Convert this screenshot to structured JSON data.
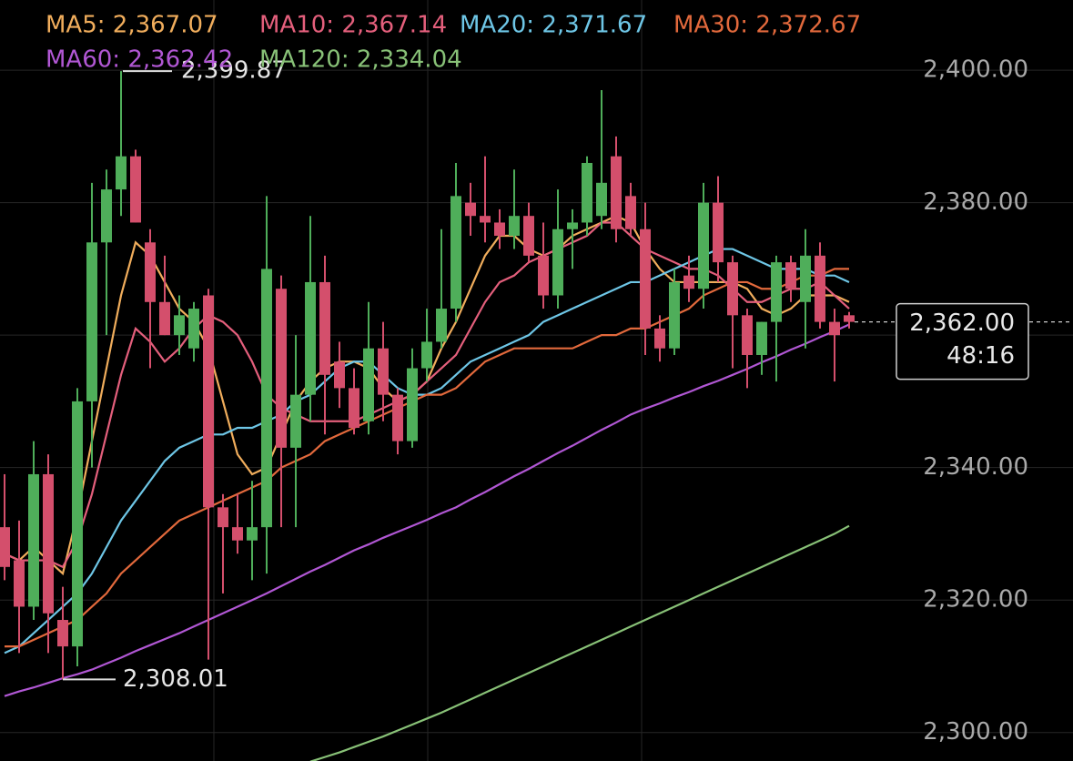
{
  "chart_data": {
    "type": "candlestick",
    "categories": [
      null,
      null,
      null,
      null,
      null,
      null,
      null,
      null,
      null,
      null,
      null,
      null,
      null,
      null,
      null,
      null,
      null,
      null,
      null,
      null,
      null,
      null,
      null,
      null,
      null,
      null,
      null,
      null,
      null,
      null,
      null,
      null,
      null,
      null,
      null,
      null,
      null,
      null,
      null,
      null,
      null,
      null,
      null,
      null,
      null,
      null,
      null,
      null,
      null,
      null,
      null,
      null,
      null,
      null,
      null,
      null,
      null,
      null,
      null
    ],
    "up_color": "#4fae5a",
    "down_color": "#d44f6c",
    "open": [
      2331,
      2326,
      2319,
      2339,
      2317,
      2313,
      2350,
      2374,
      2382,
      2387,
      2374,
      2365,
      2360,
      2358,
      2366,
      2334,
      2331,
      2329,
      2331,
      2367,
      2343,
      2351,
      2368,
      2356,
      2352,
      2347,
      2358,
      2351,
      2344,
      2355,
      2359,
      2364,
      2380,
      2378,
      2377,
      2375,
      2378,
      2372,
      2366,
      2376,
      2377,
      2378,
      2387,
      2381,
      2376,
      2361,
      2358,
      2369,
      2367,
      2380,
      2371,
      2363,
      2357,
      2362,
      2371,
      2365,
      2372,
      2362,
      2363
    ],
    "high": [
      2339,
      2332,
      2344,
      2342,
      2322,
      2352,
      2383,
      2385,
      2399.87,
      2388,
      2376,
      2372,
      2366,
      2365,
      2367,
      2336,
      2336,
      2338,
      2381,
      2369,
      2360,
      2378,
      2372,
      2359,
      2355,
      2365,
      2362,
      2352,
      2358,
      2364,
      2376,
      2386,
      2383,
      2387,
      2379,
      2385,
      2380,
      2377,
      2382,
      2379,
      2387,
      2397,
      2390,
      2383,
      2380,
      2363,
      2370,
      2372,
      2383,
      2384,
      2372,
      2364,
      2362,
      2372,
      2372,
      2376,
      2374,
      2364,
      2363.5
    ],
    "low": [
      2323,
      2312,
      2317,
      2312,
      2308.01,
      2310,
      2340,
      2360,
      2378,
      2377,
      2355,
      2360,
      2357,
      2356,
      2311,
      2321,
      2327,
      2323,
      2324,
      2331,
      2331,
      2347,
      2345,
      2349,
      2345,
      2345,
      2347,
      2342,
      2343,
      2353,
      2358,
      2362,
      2375,
      2374,
      2373,
      2373,
      2371,
      2364,
      2364,
      2370,
      2375,
      2376,
      2374,
      2375,
      2357,
      2356,
      2357,
      2365,
      2364,
      2368,
      2355,
      2352,
      2354,
      2353,
      2365,
      2358,
      2361,
      2353,
      2361
    ],
    "close": [
      2325,
      2319,
      2339,
      2318,
      2313,
      2350,
      2374,
      2382,
      2387,
      2377,
      2365,
      2360,
      2363,
      2364,
      2334,
      2331,
      2329,
      2331,
      2370,
      2343,
      2351,
      2368,
      2354,
      2352,
      2346,
      2358,
      2351,
      2344,
      2355,
      2359,
      2364,
      2381,
      2378,
      2377,
      2375,
      2378,
      2372,
      2366,
      2376,
      2377,
      2386,
      2383,
      2376,
      2376,
      2361,
      2358,
      2368,
      2367,
      2380,
      2371,
      2363,
      2357,
      2362,
      2371,
      2367,
      2372,
      2362,
      2360,
      2362
    ],
    "series": [
      {
        "name": "MA5: 2,367.07",
        "color": "#f0ad5c",
        "values": [
          2327,
          2326,
          2328,
          2326,
          2324,
          2333,
          2344,
          2355,
          2366,
          2374,
          2372,
          2368,
          2364,
          2362,
          2358,
          2350,
          2342,
          2339,
          2340,
          2345,
          2350,
          2353,
          2355,
          2356,
          2356,
          2355,
          2352,
          2350,
          2351,
          2353,
          2358,
          2362,
          2367,
          2372,
          2375,
          2375,
          2373,
          2372,
          2373,
          2375,
          2376,
          2377,
          2378,
          2377,
          2373,
          2370,
          2368,
          2368,
          2368,
          2368,
          2368,
          2367,
          2364,
          2363,
          2364,
          2366,
          2366,
          2366,
          2365
        ]
      },
      {
        "name": "MA10: 2,367.14",
        "color": "#e45f7c",
        "values": [
          2327,
          2326,
          2326,
          2326,
          2325,
          2329,
          2336,
          2345,
          2354,
          2361,
          2359,
          2356,
          2358,
          2361,
          2363,
          2362,
          2360,
          2356,
          2351,
          2349,
          2348,
          2347,
          2347,
          2347,
          2347,
          2348,
          2349,
          2350,
          2351,
          2353,
          2355,
          2357,
          2361,
          2365,
          2368,
          2369,
          2371,
          2372,
          2373,
          2374,
          2375,
          2377,
          2377,
          2375,
          2373,
          2372,
          2371,
          2370,
          2370,
          2369,
          2367,
          2365,
          2365,
          2366,
          2367,
          2367,
          2368,
          2366,
          2364
        ]
      },
      {
        "name": "MA20: 2,371.67",
        "color": "#6ec6e6",
        "values": [
          2312,
          2313,
          2315,
          2317,
          2319,
          2321,
          2324,
          2328,
          2332,
          2335,
          2338,
          2341,
          2343,
          2344,
          2345,
          2345,
          2346,
          2346,
          2347,
          2348,
          2350,
          2351,
          2353,
          2355,
          2356,
          2356,
          2354,
          2352,
          2351,
          2351,
          2352,
          2354,
          2356,
          2357,
          2358,
          2359,
          2360,
          2362,
          2363,
          2364,
          2365,
          2366,
          2367,
          2368,
          2368,
          2369,
          2370,
          2371,
          2372,
          2373,
          2373,
          2372,
          2371,
          2370,
          2370,
          2370,
          2369,
          2369,
          2368
        ]
      },
      {
        "name": "MA30: 2,372.67",
        "color": "#e2693c",
        "values": [
          2313,
          2313,
          2314,
          2315,
          2316,
          2317,
          2319,
          2321,
          2324,
          2326,
          2328,
          2330,
          2332,
          2333,
          2334,
          2335,
          2336,
          2337,
          2338,
          2340,
          2341,
          2342,
          2344,
          2345,
          2346,
          2347,
          2348,
          2349,
          2350,
          2351,
          2351,
          2352,
          2354,
          2356,
          2357,
          2358,
          2358,
          2358,
          2358,
          2358,
          2359,
          2360,
          2360,
          2361,
          2361,
          2362,
          2363,
          2364,
          2366,
          2367,
          2368,
          2368,
          2367,
          2367,
          2368,
          2369,
          2369,
          2370,
          2370
        ]
      },
      {
        "name": "MA60: 2,362.42",
        "color": "#b157d4",
        "values": [
          2305.5,
          2306.2,
          2306.8,
          2307.5,
          2308.2,
          2308.8,
          2309.5,
          2310.4,
          2311.3,
          2312.3,
          2313.2,
          2314.1,
          2315,
          2316,
          2317,
          2318,
          2319,
          2320,
          2321,
          2322.1,
          2323.2,
          2324.3,
          2325.3,
          2326.4,
          2327.5,
          2328.4,
          2329.4,
          2330.3,
          2331.2,
          2332.1,
          2333.1,
          2334,
          2335.2,
          2336.3,
          2337.5,
          2338.7,
          2339.8,
          2341,
          2342.2,
          2343.3,
          2344.5,
          2345.7,
          2346.8,
          2348,
          2348.9,
          2349.7,
          2350.6,
          2351.4,
          2352.3,
          2353.1,
          2354,
          2354.9,
          2355.9,
          2356.8,
          2357.8,
          2358.7,
          2359.7,
          2360.6,
          2361.6
        ]
      },
      {
        "name": "MA120: 2,334.04",
        "color": "#88c177",
        "values": [
          null,
          null,
          null,
          null,
          null,
          null,
          null,
          null,
          null,
          null,
          null,
          null,
          null,
          null,
          null,
          null,
          null,
          null,
          null,
          null,
          null,
          2295.6,
          2296.3,
          2297,
          2297.8,
          2298.6,
          2299.4,
          2300.3,
          2301.2,
          2302.1,
          2303,
          2304,
          2305,
          2306,
          2307,
          2308,
          2309,
          2310,
          2311,
          2312,
          2313,
          2314,
          2315,
          2316,
          2317,
          2318,
          2319,
          2320,
          2321,
          2322,
          2323,
          2324,
          2325,
          2326,
          2327,
          2328,
          2329,
          2330,
          2331.2
        ]
      }
    ],
    "ylim": [
      2295.7,
      2410.6
    ],
    "yticks": [
      {
        "value": 2300,
        "label": "2,300.00"
      },
      {
        "value": 2320,
        "label": "2,320.00"
      },
      {
        "value": 2340,
        "label": "2,340.00"
      },
      {
        "value": 2360,
        "label": "2,360.00"
      },
      {
        "value": 2380,
        "label": "2,380.00"
      },
      {
        "value": 2400,
        "label": "2,400.00"
      }
    ],
    "grid": true,
    "high_marker": {
      "value": 2399.87,
      "label": "2,399.87"
    },
    "low_marker": {
      "value": 2308.01,
      "label": "2,308.01"
    },
    "last_price": {
      "value": 2362,
      "label": "2,362.00",
      "countdown": "48:16"
    }
  }
}
